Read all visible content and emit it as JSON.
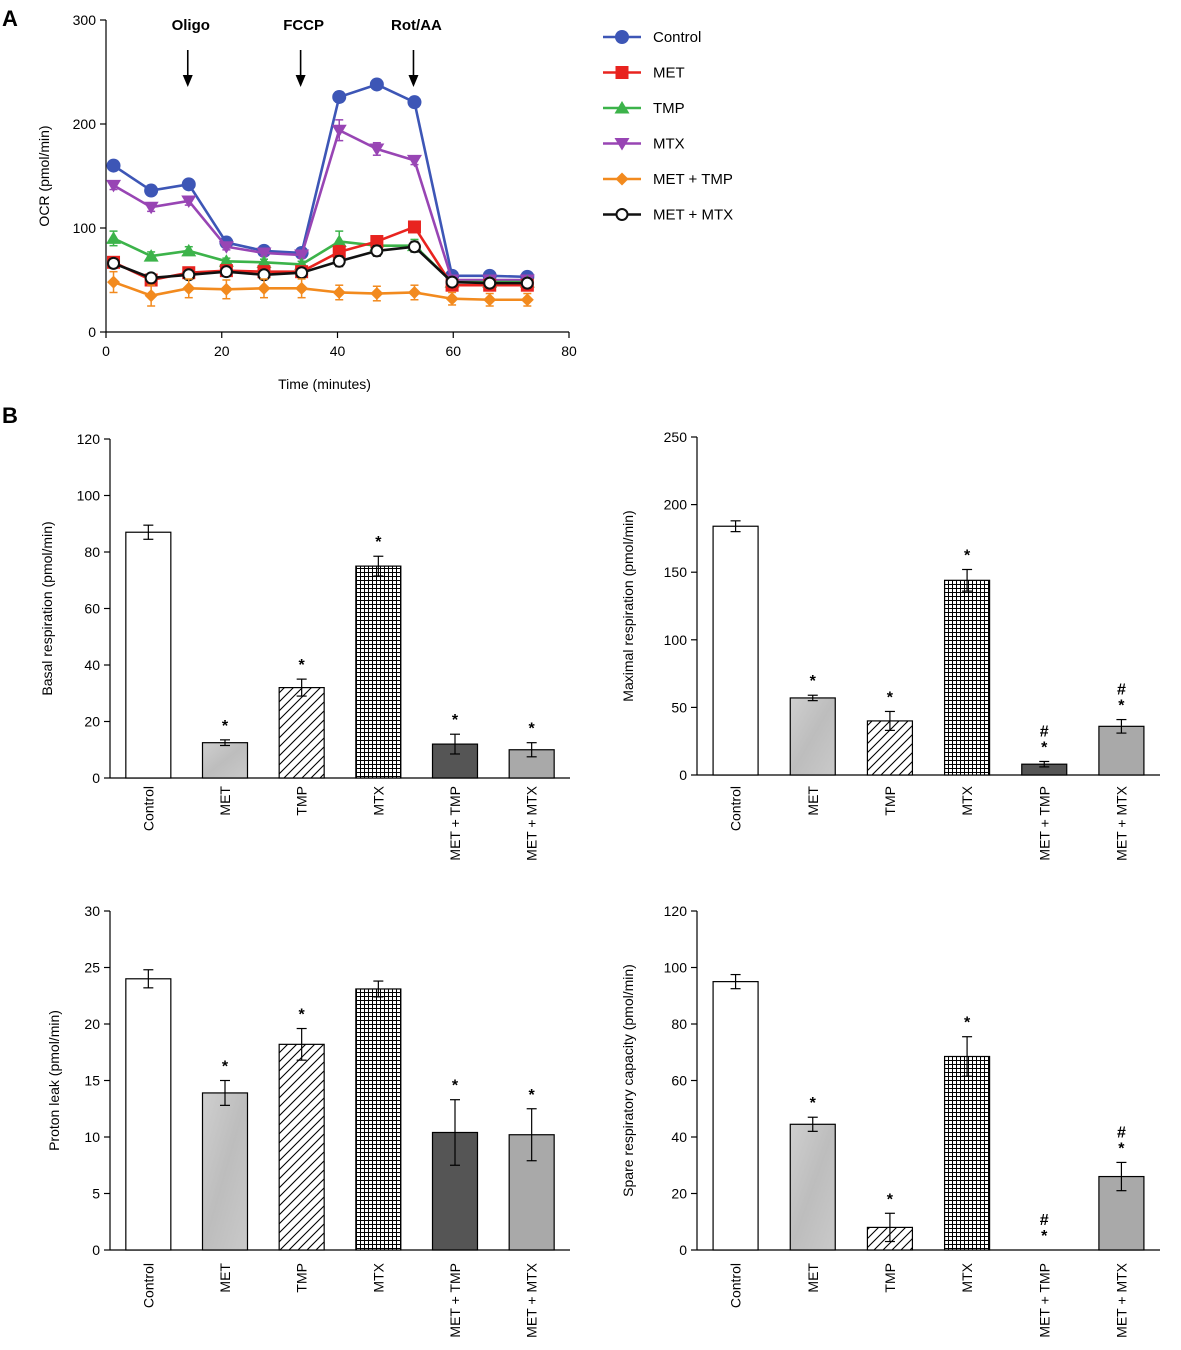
{
  "figure": {
    "panel_a_label": "A",
    "panel_b_label": "B"
  },
  "colors": {
    "Control": "#3d56b6",
    "MET": "#e8231f",
    "TMP": "#3cb34a",
    "MTX": "#9845b4",
    "MET + TMP": "#f28a1e",
    "MET + MTX": "#111111"
  },
  "chart_data": [
    {
      "id": "ocr",
      "type": "line",
      "title": "",
      "xlabel": "Time (minutes)",
      "ylabel": "OCR (pmol/min)",
      "xlim": [
        0,
        80
      ],
      "ylim": [
        0,
        300
      ],
      "xticks": [
        0,
        20,
        40,
        60,
        80
      ],
      "yticks": [
        0,
        100,
        200,
        300
      ],
      "x": [
        1.3,
        7.8,
        14.3,
        20.8,
        27.3,
        33.8,
        40.3,
        46.8,
        53.3,
        59.8,
        66.3,
        72.8
      ],
      "annotations": [
        {
          "label": "Oligo",
          "x": 14.3
        },
        {
          "label": "FCCP",
          "x": 33.8
        },
        {
          "label": "Rot/AA",
          "x": 53.3
        }
      ],
      "series": [
        {
          "name": "Control",
          "marker": "circle",
          "values": [
            160,
            136,
            142,
            86,
            78,
            76,
            226,
            238,
            221,
            54,
            54,
            53
          ],
          "errors": [
            3,
            3,
            3,
            3,
            3,
            3,
            5,
            3,
            3,
            3,
            3,
            3
          ]
        },
        {
          "name": "MTX",
          "marker": "triangle-down",
          "values": [
            141,
            120,
            126,
            82,
            76,
            74,
            194,
            176,
            165,
            50,
            50,
            50
          ],
          "errors": [
            4,
            4,
            4,
            3,
            3,
            3,
            10,
            6,
            4,
            3,
            3,
            3
          ]
        },
        {
          "name": "TMP",
          "marker": "triangle-up",
          "values": [
            90,
            73,
            78,
            68,
            67,
            65,
            87,
            83,
            83,
            48,
            48,
            48
          ],
          "errors": [
            7,
            4,
            4,
            3,
            3,
            3,
            10,
            6,
            6,
            3,
            3,
            3
          ]
        },
        {
          "name": "MET",
          "marker": "square",
          "values": [
            67,
            50,
            57,
            59,
            58,
            58,
            77,
            87,
            101,
            45,
            45,
            45
          ],
          "errors": [
            5,
            5,
            5,
            5,
            5,
            5,
            6,
            5,
            5,
            5,
            5,
            5
          ]
        },
        {
          "name": "MET + MTX",
          "marker": "open-circle",
          "values": [
            66,
            52,
            55,
            58,
            55,
            57,
            68,
            78,
            82,
            48,
            47,
            47
          ],
          "errors": [
            4,
            4,
            4,
            4,
            4,
            4,
            5,
            5,
            5,
            4,
            4,
            4
          ]
        },
        {
          "name": "MET + TMP",
          "marker": "diamond",
          "values": [
            48,
            35,
            42,
            41,
            42,
            42,
            38,
            37,
            38,
            32,
            31,
            31
          ],
          "errors": [
            10,
            10,
            9,
            9,
            9,
            9,
            7,
            7,
            7,
            6,
            6,
            6
          ]
        }
      ]
    },
    {
      "id": "basal",
      "type": "bar",
      "ylabel": "Basal respiration (pmol/min)",
      "ylim": [
        0,
        120
      ],
      "yticks": [
        0,
        20,
        40,
        60,
        80,
        100,
        120
      ],
      "categories": [
        "Control",
        "MET",
        "TMP",
        "MTX",
        "MET + TMP",
        "MET + MTX"
      ],
      "values": [
        87,
        12.5,
        32,
        75,
        12,
        10
      ],
      "errors": [
        2.5,
        1,
        3,
        3.5,
        3.5,
        2.5
      ],
      "markers": [
        "",
        "*",
        "*",
        "*",
        "*",
        "*"
      ]
    },
    {
      "id": "maximal",
      "type": "bar",
      "ylabel": "Maximal respiration (pmol/min)",
      "ylim": [
        0,
        250
      ],
      "yticks": [
        0,
        50,
        100,
        150,
        200,
        250
      ],
      "categories": [
        "Control",
        "MET",
        "TMP",
        "MTX",
        "MET + TMP",
        "MET + MTX"
      ],
      "values": [
        184,
        57,
        40,
        144,
        8,
        36
      ],
      "errors": [
        4,
        2,
        7,
        8,
        2,
        5
      ],
      "markers": [
        "",
        "*",
        "*",
        "*",
        "* #",
        "* #"
      ]
    },
    {
      "id": "proton",
      "type": "bar",
      "ylabel": "Proton leak (pmol/min)",
      "ylim": [
        0,
        30
      ],
      "yticks": [
        0,
        5,
        10,
        15,
        20,
        25,
        30
      ],
      "categories": [
        "Control",
        "MET",
        "TMP",
        "MTX",
        "MET + TMP",
        "MET + MTX"
      ],
      "values": [
        24,
        13.9,
        18.2,
        23.1,
        10.4,
        10.2
      ],
      "errors": [
        0.8,
        1.1,
        1.4,
        0.7,
        2.9,
        2.3
      ],
      "markers": [
        "",
        "*",
        "*",
        "",
        "*",
        "*"
      ]
    },
    {
      "id": "spare",
      "type": "bar",
      "ylabel": "Spare respiratory capacity (pmol/min)",
      "ylim": [
        0,
        120
      ],
      "yticks": [
        0,
        20,
        40,
        60,
        80,
        100,
        120
      ],
      "categories": [
        "Control",
        "MET",
        "TMP",
        "MTX",
        "MET + TMP",
        "MET + MTX"
      ],
      "values": [
        95,
        44.5,
        8,
        68.5,
        0,
        26
      ],
      "errors": [
        2.5,
        2.5,
        5,
        7,
        0,
        5
      ],
      "markers": [
        "",
        "*",
        "*",
        "*",
        "* #",
        "* #"
      ]
    }
  ]
}
